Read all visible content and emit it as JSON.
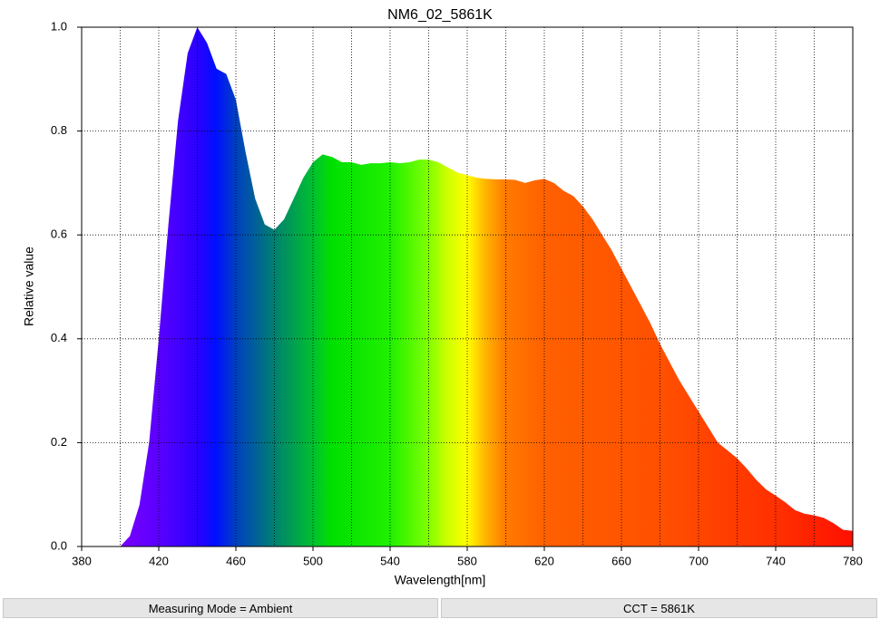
{
  "chart_data": {
    "type": "area",
    "title": "NM6_02_5861K",
    "xlabel": "Wavelength[nm]",
    "ylabel": "Relative value",
    "x": [
      400,
      405,
      410,
      415,
      420,
      425,
      430,
      435,
      440,
      445,
      450,
      455,
      460,
      465,
      470,
      475,
      480,
      485,
      490,
      495,
      500,
      505,
      510,
      515,
      520,
      525,
      530,
      535,
      540,
      545,
      550,
      555,
      560,
      565,
      570,
      575,
      580,
      585,
      590,
      595,
      600,
      605,
      610,
      615,
      620,
      625,
      630,
      635,
      640,
      645,
      650,
      655,
      660,
      665,
      670,
      675,
      680,
      685,
      690,
      695,
      700,
      705,
      710,
      715,
      720,
      725,
      730,
      735,
      740,
      745,
      750,
      755,
      760,
      765,
      770,
      775,
      780
    ],
    "values": [
      0.0,
      0.02,
      0.08,
      0.2,
      0.4,
      0.62,
      0.82,
      0.95,
      1.0,
      0.97,
      0.92,
      0.91,
      0.86,
      0.76,
      0.67,
      0.62,
      0.61,
      0.63,
      0.67,
      0.71,
      0.74,
      0.755,
      0.75,
      0.74,
      0.74,
      0.735,
      0.738,
      0.738,
      0.74,
      0.738,
      0.74,
      0.745,
      0.745,
      0.74,
      0.73,
      0.72,
      0.715,
      0.71,
      0.708,
      0.707,
      0.707,
      0.706,
      0.7,
      0.705,
      0.708,
      0.7,
      0.685,
      0.675,
      0.655,
      0.63,
      0.6,
      0.57,
      0.535,
      0.5,
      0.465,
      0.43,
      0.39,
      0.355,
      0.32,
      0.29,
      0.26,
      0.23,
      0.2,
      0.185,
      0.17,
      0.15,
      0.128,
      0.11,
      0.098,
      0.085,
      0.07,
      0.063,
      0.06,
      0.055,
      0.045,
      0.032,
      0.03
    ],
    "gradient": [
      {
        "x": 400,
        "color": "#7a00ff"
      },
      {
        "x": 420,
        "color": "#5a00ff"
      },
      {
        "x": 440,
        "color": "#2a00ff"
      },
      {
        "x": 450,
        "color": "#0010ff"
      },
      {
        "x": 460,
        "color": "#0040c0"
      },
      {
        "x": 480,
        "color": "#008070"
      },
      {
        "x": 500,
        "color": "#00c030"
      },
      {
        "x": 510,
        "color": "#00e000"
      },
      {
        "x": 540,
        "color": "#20f000"
      },
      {
        "x": 560,
        "color": "#80ff00"
      },
      {
        "x": 570,
        "color": "#d0ff00"
      },
      {
        "x": 580,
        "color": "#ffff00"
      },
      {
        "x": 590,
        "color": "#ffb000"
      },
      {
        "x": 600,
        "color": "#ff7a00"
      },
      {
        "x": 620,
        "color": "#ff6000"
      },
      {
        "x": 680,
        "color": "#ff5000"
      },
      {
        "x": 740,
        "color": "#ff3000"
      },
      {
        "x": 780,
        "color": "#ff1000"
      }
    ],
    "xlim": [
      380,
      780
    ],
    "xticks": [
      380,
      420,
      460,
      500,
      540,
      580,
      620,
      660,
      700,
      740,
      780
    ],
    "x_grid": [
      400,
      420,
      440,
      460,
      480,
      500,
      520,
      540,
      560,
      580,
      600,
      620,
      640,
      660,
      680,
      700,
      720,
      740,
      760
    ],
    "ylim": [
      0,
      1
    ],
    "yticks": [
      {
        "value": 0,
        "label": "0.0"
      },
      0.2,
      0.4,
      0.6,
      0.8,
      {
        "value": 1,
        "label": "1.0"
      }
    ],
    "grid": true
  },
  "footer": {
    "mode": "Measuring Mode = Ambient",
    "cct": "CCT = 5861K"
  }
}
